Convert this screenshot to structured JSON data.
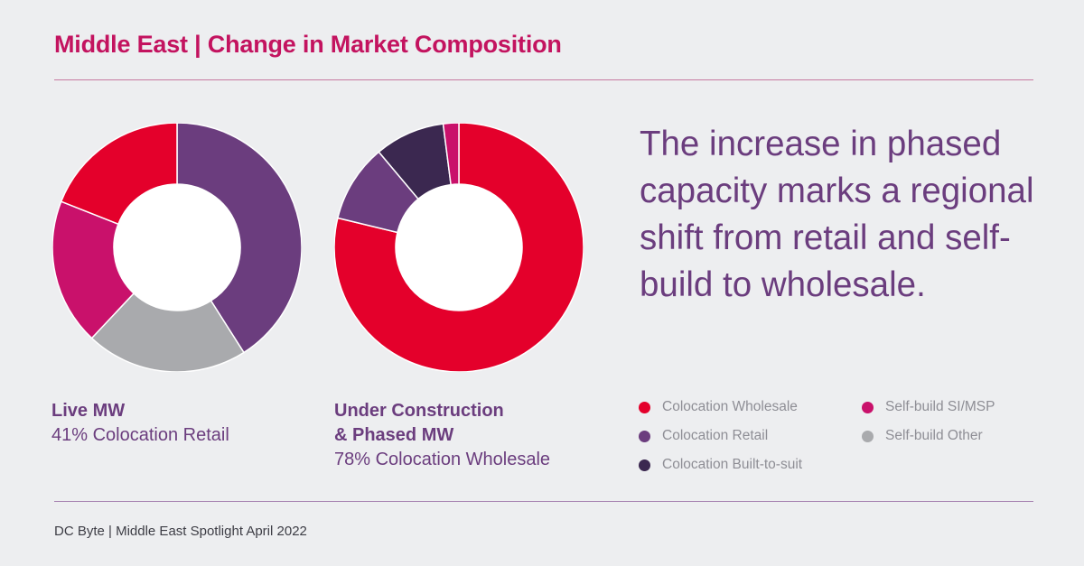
{
  "title": "Middle East | Change in Market Composition",
  "headline": "The increase in phased capacity marks a regional shift from retail and self-build to wholesale.",
  "footer": "DC Byte | Middle East Spotlight April 2022",
  "colors": {
    "Colocation Wholesale": "#e4002b",
    "Colocation Retail": "#6b3d7e",
    "Colocation Built-to-suit": "#3b2850",
    "Self-build SI/MSP": "#c9116b",
    "Self-build Other": "#a9aaad"
  },
  "legend": [
    {
      "label": "Colocation Wholesale",
      "color": "#e4002b"
    },
    {
      "label": "Self-build SI/MSP",
      "color": "#c9116b"
    },
    {
      "label": "Colocation Retail",
      "color": "#6b3d7e"
    },
    {
      "label": "Self-build Other",
      "color": "#a9aaad"
    },
    {
      "label": "Colocation Built-to-suit",
      "color": "#3b2850"
    }
  ],
  "chart_data": [
    {
      "type": "pie",
      "subtype": "donut",
      "title": "Live MW",
      "subtitle": "41% Colocation Retail",
      "slices": [
        {
          "name": "Colocation Retail",
          "value": 41
        },
        {
          "name": "Self-build Other",
          "value": 21
        },
        {
          "name": "Self-build SI/MSP",
          "value": 19
        },
        {
          "name": "Colocation Wholesale",
          "value": 19
        }
      ]
    },
    {
      "type": "pie",
      "subtype": "donut",
      "title": "Under Construction & Phased MW",
      "title_lines": [
        "Under Construction",
        "& Phased MW"
      ],
      "subtitle": "78% Colocation Wholesale",
      "slices": [
        {
          "name": "Colocation Wholesale",
          "value": 78
        },
        {
          "name": "Colocation Retail",
          "value": 10
        },
        {
          "name": "Colocation Built-to-suit",
          "value": 9
        },
        {
          "name": "Self-build SI/MSP",
          "value": 2
        }
      ]
    }
  ]
}
